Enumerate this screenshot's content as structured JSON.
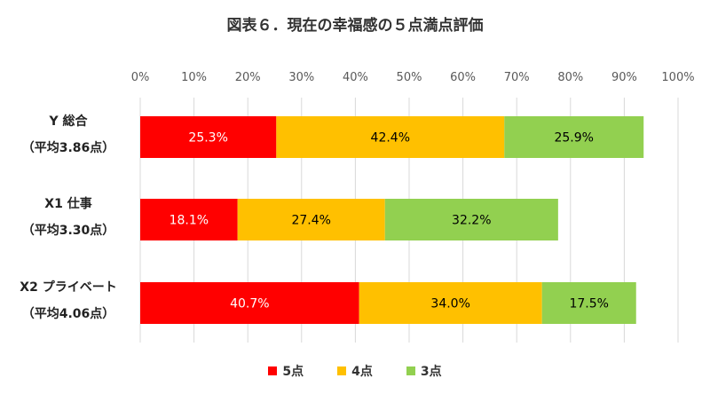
{
  "chart_data": {
    "type": "bar",
    "orientation": "horizontal",
    "stacked": true,
    "title": "図表６．現在の幸福感の５点満点評価",
    "categories": [
      [
        "Y 総合",
        "（平均3.86点）"
      ],
      [
        "X1 仕事",
        "（平均3.30点）"
      ],
      [
        "X2 プライベート",
        "（平均4.06点）"
      ]
    ],
    "series": [
      {
        "name": "5点",
        "color": "#FF0000",
        "label_color": "#FFFFFF",
        "values": [
          25.3,
          18.1,
          40.7
        ],
        "labels": [
          "25.3%",
          "18.1%",
          "40.7%"
        ]
      },
      {
        "name": "4点",
        "color": "#FFC000",
        "label_color": "#000000",
        "values": [
          42.4,
          27.4,
          34.0
        ],
        "labels": [
          "42.4%",
          "27.4%",
          "34.0%"
        ]
      },
      {
        "name": "3点",
        "color": "#92D050",
        "label_color": "#000000",
        "values": [
          25.9,
          32.2,
          17.5
        ],
        "labels": [
          "25.9%",
          "32.2%",
          "17.5%"
        ]
      }
    ],
    "xlim": [
      0,
      100
    ],
    "xticks": [
      "0%",
      "10%",
      "20%",
      "30%",
      "40%",
      "50%",
      "60%",
      "70%",
      "80%",
      "90%",
      "100%"
    ],
    "grid": true,
    "legend": "bottom"
  }
}
